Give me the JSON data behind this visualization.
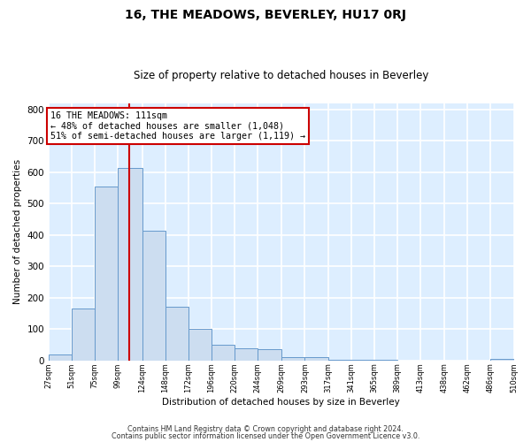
{
  "title": "16, THE MEADOWS, BEVERLEY, HU17 0RJ",
  "subtitle": "Size of property relative to detached houses in Beverley",
  "xlabel": "Distribution of detached houses by size in Beverley",
  "ylabel": "Number of detached properties",
  "bar_color": "#ccddf0",
  "bar_edge_color": "#6699cc",
  "plot_bg_color": "#ddeeff",
  "fig_bg_color": "#ffffff",
  "grid_color": "#ffffff",
  "vline_x": 111,
  "vline_color": "#cc0000",
  "annotation_title": "16 THE MEADOWS: 111sqm",
  "annotation_line1": "← 48% of detached houses are smaller (1,048)",
  "annotation_line2": "51% of semi-detached houses are larger (1,119) →",
  "annotation_box_color": "#ffffff",
  "annotation_box_edge": "#cc0000",
  "bin_edges": [
    27,
    51,
    75,
    99,
    124,
    148,
    172,
    196,
    220,
    244,
    269,
    293,
    317,
    341,
    365,
    389,
    413,
    438,
    462,
    486,
    510
  ],
  "bar_heights": [
    20,
    165,
    555,
    615,
    415,
    170,
    100,
    50,
    40,
    35,
    10,
    10,
    2,
    2,
    2,
    0,
    0,
    0,
    0,
    5
  ],
  "ylim": [
    0,
    820
  ],
  "yticks": [
    0,
    100,
    200,
    300,
    400,
    500,
    600,
    700,
    800
  ],
  "footnote1": "Contains HM Land Registry data © Crown copyright and database right 2024.",
  "footnote2": "Contains public sector information licensed under the Open Government Licence v3.0."
}
